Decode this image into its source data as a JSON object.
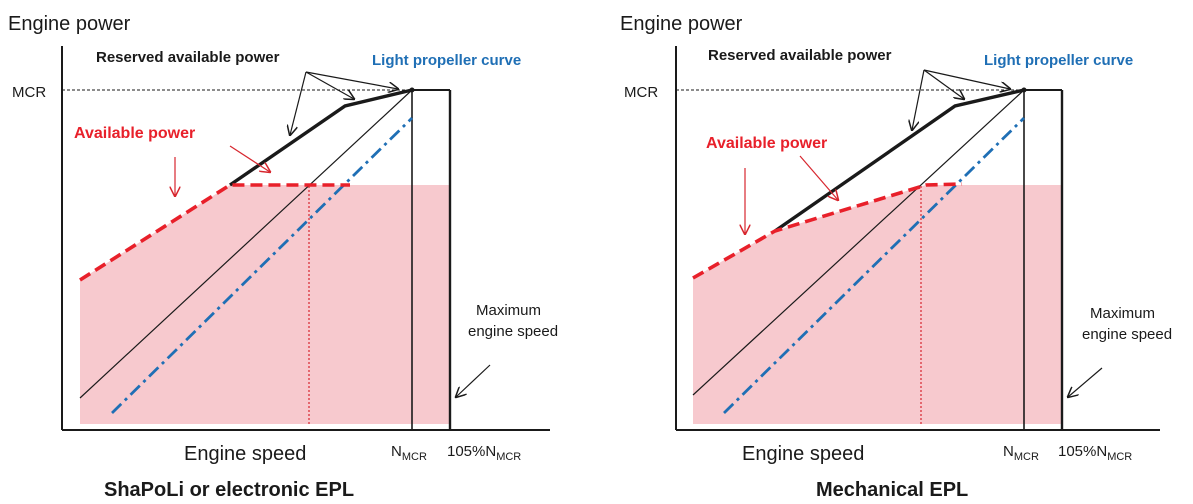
{
  "colors": {
    "available": "#e8202a",
    "shade": "#f7c9ce",
    "propeller": "#1f6fb5",
    "ink": "#1a1a1a",
    "pointer_red": "#d7262e"
  },
  "panels": [
    {
      "y_axis_label": "Engine power",
      "x_axis_label": "Engine speed",
      "mcr_label": "MCR",
      "reserved_label": "Reserved available power",
      "propeller_label": "Light propeller curve",
      "available_label": "Available power",
      "max_speed_label_line1": "Maximum",
      "max_speed_label_line2": "engine speed",
      "n_mcr_main": "N",
      "n_mcr_sub": "MCR",
      "n_mcr_105_main": "105%N",
      "n_mcr_105_sub": "MCR",
      "caption": "ShaPoLi or electronic EPL"
    },
    {
      "y_axis_label": "Engine power",
      "x_axis_label": "Engine speed",
      "mcr_label": "MCR",
      "reserved_label": "Reserved available power",
      "propeller_label": "Light propeller curve",
      "available_label": "Available power",
      "max_speed_label_line1": "Maximum",
      "max_speed_label_line2": "engine speed",
      "n_mcr_main": "N",
      "n_mcr_sub": "MCR",
      "n_mcr_105_main": "105%N",
      "n_mcr_105_sub": "MCR",
      "caption": "Mechanical EPL"
    }
  ]
}
